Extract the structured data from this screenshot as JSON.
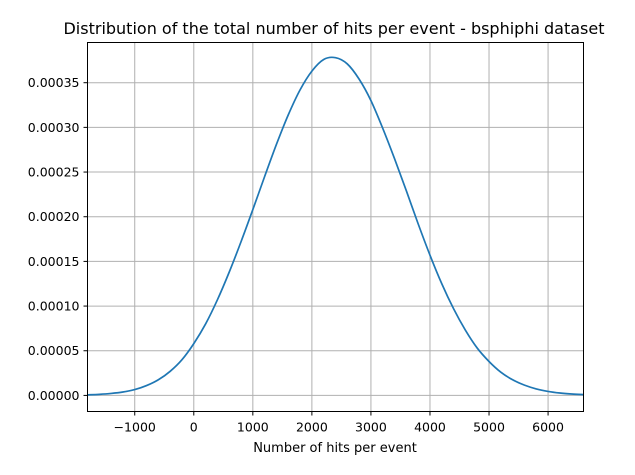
{
  "chart_data": {
    "type": "line",
    "title": "Distribution of the total number of hits per event - bsphiphi dataset",
    "xlabel": "Number of hits per event",
    "ylabel": "",
    "xlim": [
      -1800,
      6600
    ],
    "ylim": [
      -1.8e-05,
      0.000395
    ],
    "x_ticks": [
      -1000,
      0,
      1000,
      2000,
      3000,
      4000,
      5000,
      6000
    ],
    "x_tick_labels": [
      "−1000",
      "0",
      "1000",
      "2000",
      "3000",
      "4000",
      "5000",
      "6000"
    ],
    "y_ticks": [
      0,
      5e-05,
      0.0001,
      0.00015,
      0.0002,
      0.00025,
      0.0003,
      0.00035
    ],
    "y_tick_labels": [
      "0.00000",
      "0.00005",
      "0.00010",
      "0.00015",
      "0.00020",
      "0.00025",
      "0.00030",
      "0.00035"
    ],
    "grid": true,
    "series_color": "#1f77b4",
    "series": [
      {
        "x": [
          -1800,
          -1600,
          -1400,
          -1200,
          -1000,
          -800,
          -600,
          -400,
          -200,
          0,
          200,
          400,
          600,
          800,
          1000,
          1200,
          1400,
          1600,
          1800,
          2000,
          2200,
          2400,
          2600,
          2800,
          3000,
          3200,
          3400,
          3600,
          3800,
          4000,
          4200,
          4400,
          4600,
          4800,
          5000,
          5200,
          5400,
          5600,
          5800,
          6000,
          6200,
          6400,
          6600
        ],
        "y": [
          6e-07,
          1.2e-06,
          2.2e-06,
          3.8e-06,
          6.5e-06,
          1.1e-05,
          1.75e-05,
          2.7e-05,
          4e-05,
          5.8e-05,
          8e-05,
          0.000107,
          0.000138,
          0.000172,
          0.000208,
          0.000245,
          0.000281,
          0.000314,
          0.000342,
          0.000363,
          0.000376,
          0.000378,
          0.000371,
          0.000354,
          0.00033,
          0.000299,
          0.000265,
          0.000229,
          0.000192,
          0.000157,
          0.000125,
          9.7e-05,
          7.3e-05,
          5.3e-05,
          3.8e-05,
          2.6e-05,
          1.75e-05,
          1.15e-05,
          7.3e-06,
          4.5e-06,
          2.7e-06,
          1.6e-06,
          9e-07
        ]
      }
    ]
  }
}
